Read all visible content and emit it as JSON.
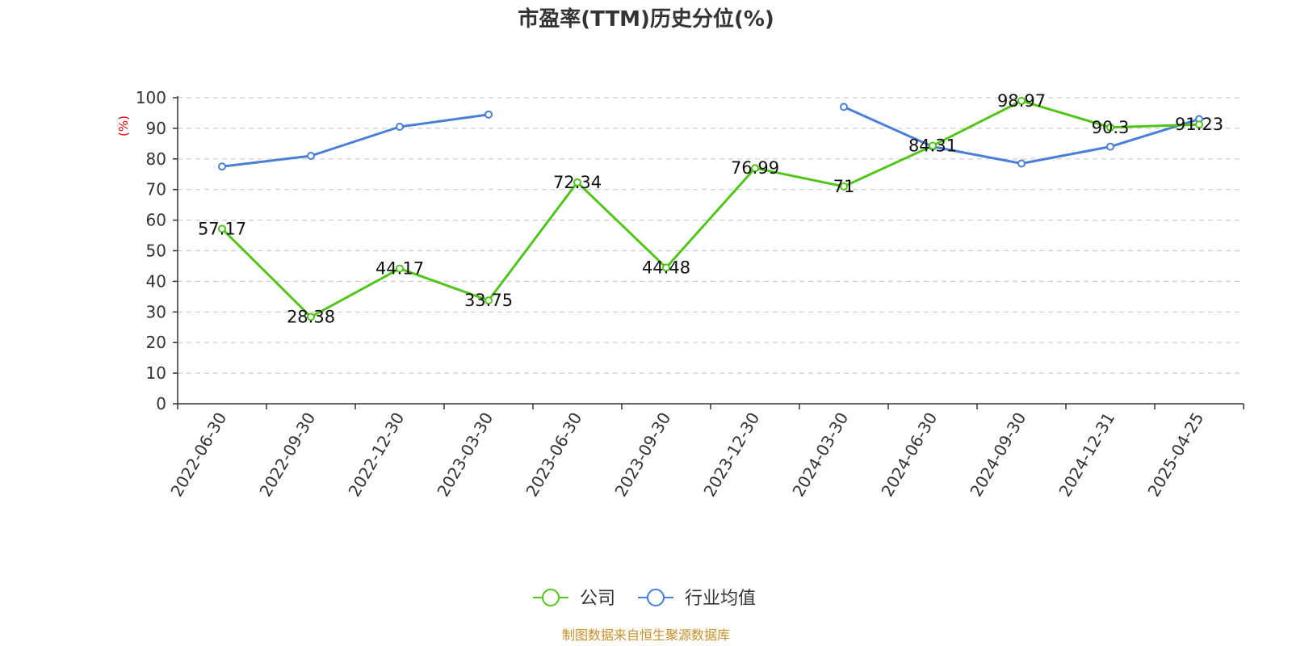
{
  "chart_data": {
    "type": "line",
    "title": "市盈率(TTM)历史分位(%)",
    "ylabel": "(%)",
    "xlabel": "",
    "ylim": [
      0,
      100
    ],
    "yticks": [
      0,
      10,
      20,
      30,
      40,
      50,
      60,
      70,
      80,
      90,
      100
    ],
    "grid": "horizontal-dashed",
    "legend_position": "bottom-center",
    "categories": [
      "2022-06-30",
      "2022-09-30",
      "2022-12-30",
      "2023-03-30",
      "2023-06-30",
      "2023-09-30",
      "2023-12-30",
      "2024-03-30",
      "2024-06-30",
      "2024-09-30",
      "2024-12-31",
      "2025-04-25"
    ],
    "series": [
      {
        "name": "公司",
        "color": "#52c41a",
        "values": [
          57.17,
          28.38,
          44.17,
          33.75,
          72.34,
          44.48,
          76.99,
          71,
          84.31,
          98.97,
          90.3,
          91.23
        ],
        "labels": [
          "57.17",
          "28.38",
          "44.17",
          "33.75",
          "72.34",
          "44.48",
          "76.99",
          "71",
          "84.31",
          "98.97",
          "90.3",
          "91.23"
        ]
      },
      {
        "name": "行业均值",
        "color": "#4a7fd8",
        "values": [
          77.5,
          81,
          90.5,
          94.5,
          null,
          null,
          null,
          97,
          84,
          78.5,
          84,
          93
        ]
      }
    ],
    "source": "制图数据来自恒生聚源数据库"
  },
  "colors": {
    "axis": "#333333",
    "grid": "#cccccc",
    "ylabel": "#e00000",
    "source": "#c8902a"
  }
}
